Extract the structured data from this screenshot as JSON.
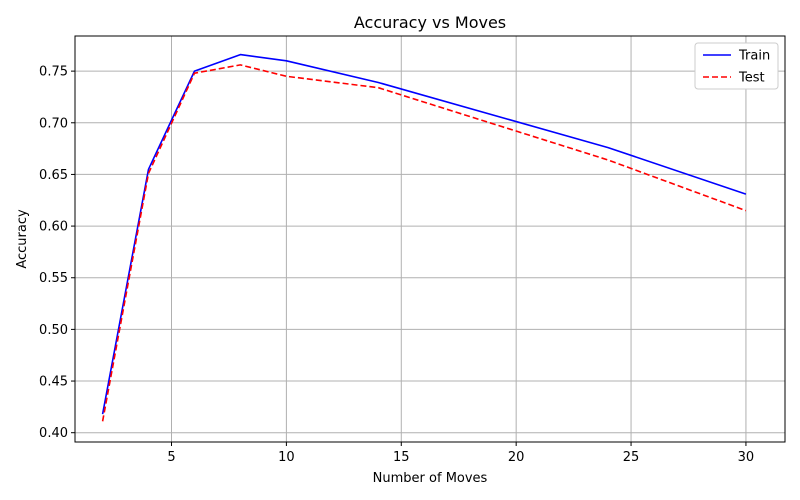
{
  "chart_data": {
    "type": "line",
    "title": "Accuracy vs Moves",
    "xlabel": "Number of Moves",
    "ylabel": "Accuracy",
    "x": [
      2,
      4,
      6,
      8,
      10,
      14,
      24,
      30
    ],
    "series": [
      {
        "name": "Train",
        "color": "#0000ff",
        "dash": "solid",
        "values": [
          0.418,
          0.655,
          0.75,
          0.766,
          0.76,
          0.739,
          0.676,
          0.631
        ]
      },
      {
        "name": "Test",
        "color": "#ff0000",
        "dash": "dashed",
        "values": [
          0.411,
          0.651,
          0.748,
          0.756,
          0.745,
          0.734,
          0.664,
          0.615
        ]
      }
    ],
    "xlim": [
      0.8,
      31.7
    ],
    "ylim": [
      0.391,
      0.784
    ],
    "xticks": [
      5,
      10,
      15,
      20,
      25,
      30
    ],
    "yticks": [
      0.4,
      0.45,
      0.5,
      0.55,
      0.6,
      0.65,
      0.7,
      0.75
    ],
    "grid": true,
    "legend_position": "top-right"
  }
}
